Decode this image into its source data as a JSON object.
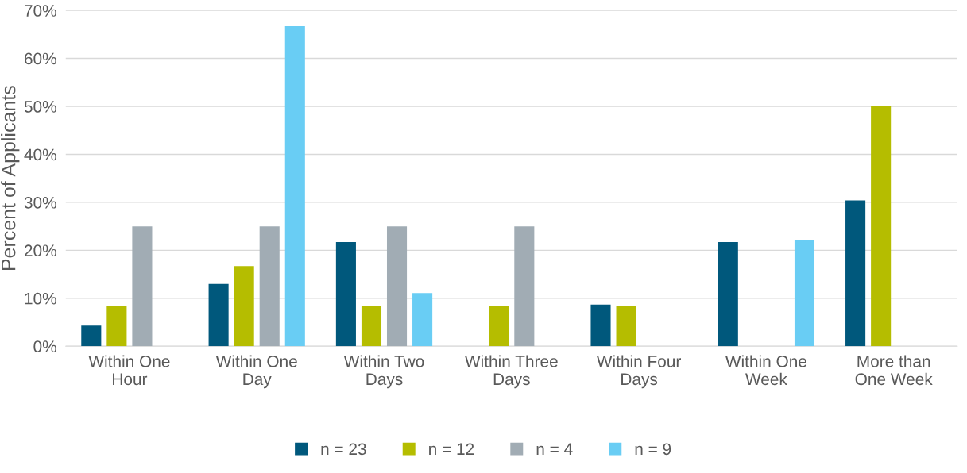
{
  "chart_data": {
    "type": "bar",
    "ylabel": "Percent of Applicants",
    "categories": [
      "Within One\nHour",
      "Within One\nDay",
      "Within Two\nDays",
      "Within Three\nDays",
      "Within Four\nDays",
      "Within One\nWeek",
      "More than\nOne Week"
    ],
    "series": [
      {
        "name": "n = 23",
        "color": "#00587c",
        "values": [
          4.3,
          13.0,
          21.7,
          0,
          8.7,
          21.7,
          30.4
        ]
      },
      {
        "name": "n = 12",
        "color": "#b5bd00",
        "values": [
          8.3,
          16.7,
          8.3,
          8.3,
          8.3,
          0,
          50
        ]
      },
      {
        "name": "n = 4",
        "color": "#a1acb4",
        "values": [
          25,
          25,
          25,
          25,
          0,
          0,
          0
        ]
      },
      {
        "name": "n = 9",
        "color": "#69cdf4",
        "values": [
          0,
          66.7,
          11.1,
          0,
          0,
          22.2,
          0
        ]
      }
    ],
    "ylim": [
      0,
      70
    ],
    "yticks": [
      {
        "value": 0,
        "label": "0%"
      },
      {
        "value": 10,
        "label": "10%"
      },
      {
        "value": 20,
        "label": "20%"
      },
      {
        "value": 30,
        "label": "30%"
      },
      {
        "value": 40,
        "label": "40%"
      },
      {
        "value": 50,
        "label": "50%"
      },
      {
        "value": 60,
        "label": "60%"
      },
      {
        "value": 70,
        "label": "70%"
      }
    ],
    "grid": "y",
    "legend": "bottom"
  }
}
